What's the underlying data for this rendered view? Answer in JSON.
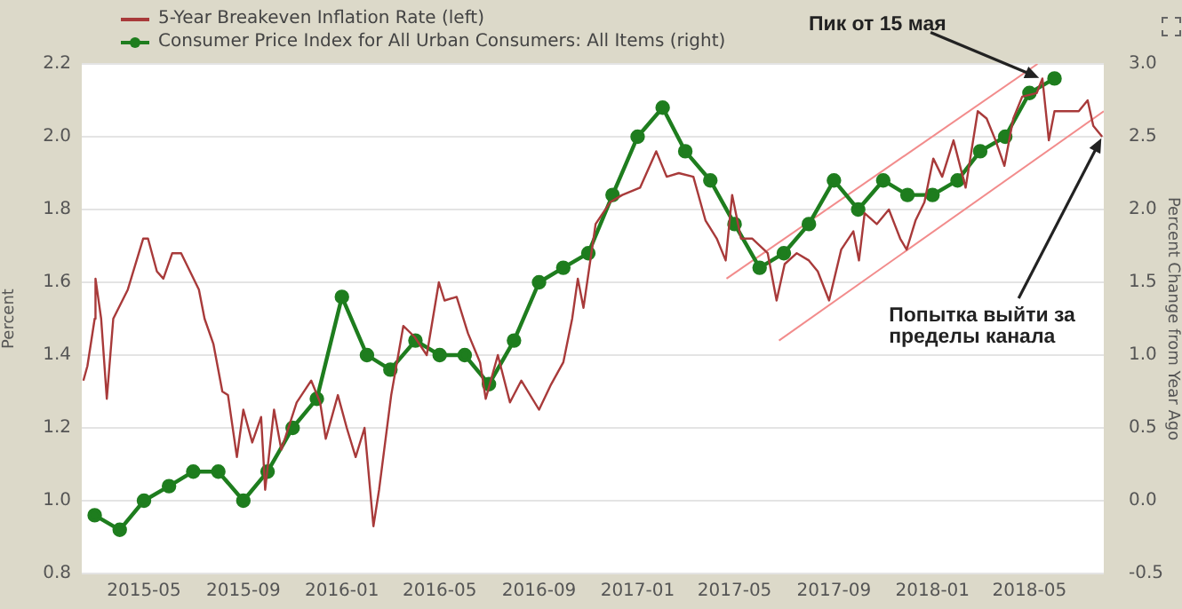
{
  "chart_data": {
    "type": "line",
    "xlabel": null,
    "ylabel": "Percent",
    "y2label": "Percent Change from Year Ago",
    "xlim": [
      "2015-02-13",
      "2018-08-01"
    ],
    "xticks": [
      "2015-05",
      "2015-09",
      "2016-01",
      "2016-05",
      "2016-09",
      "2017-01",
      "2017-05",
      "2017-09",
      "2018-01",
      "2018-05"
    ],
    "ylim": [
      0.8,
      2.2
    ],
    "yticks": [
      0.8,
      {
        "value": 1.0,
        "label": "1.0"
      },
      1.2,
      1.4,
      1.6,
      1.8,
      {
        "value": 2.0,
        "label": "2.0"
      },
      2.2
    ],
    "y2lim": [
      -0.5,
      3.0
    ],
    "y2ticks": [
      -0.5,
      {
        "value": 0.0,
        "label": "0.0"
      },
      0.5,
      {
        "value": 1.0,
        "label": "1.0"
      },
      1.5,
      {
        "value": 2.0,
        "label": "2.0"
      },
      2.5,
      {
        "value": 3.0,
        "label": "3.0"
      }
    ],
    "grid": "y",
    "legend": "top left",
    "series": [
      {
        "name": "5-Year Breakeven Inflation Rate (left)",
        "color": "#a83a3a",
        "marker": "none",
        "x": [
          "2015-02-15",
          "2015-02-20",
          "2015-03-01",
          "2015-03-02",
          "2015-03-09",
          "2015-03-16",
          "2015-03-24",
          "2015-04-11",
          "2015-04-30",
          "2015-05-06",
          "2015-05-17",
          "2015-05-25",
          "2015-06-05",
          "2015-06-16",
          "2015-06-27",
          "2015-07-08",
          "2015-07-15",
          "2015-07-26",
          "2015-08-06",
          "2015-08-13",
          "2015-08-24",
          "2015-09-01",
          "2015-09-12",
          "2015-09-23",
          "2015-09-28",
          "2015-10-09",
          "2015-10-18",
          "2015-11-06",
          "2015-11-24",
          "2015-12-05",
          "2015-12-12",
          "2015-12-27",
          "2016-01-07",
          "2016-01-18",
          "2016-01-29",
          "2016-02-09",
          "2016-02-16",
          "2016-03-02",
          "2016-03-17",
          "2016-03-31",
          "2016-04-15",
          "2016-04-30",
          "2016-05-07",
          "2016-05-22",
          "2016-06-05",
          "2016-06-20",
          "2016-06-27",
          "2016-07-12",
          "2016-07-27",
          "2016-08-10",
          "2016-09-01",
          "2016-09-16",
          "2016-10-01",
          "2016-10-12",
          "2016-10-19",
          "2016-10-26",
          "2016-11-10",
          "2016-11-28",
          "2016-12-13",
          "2017-01-04",
          "2017-01-24",
          "2017-02-06",
          "2017-02-21",
          "2017-03-11",
          "2017-03-26",
          "2017-04-09",
          "2017-04-20",
          "2017-04-28",
          "2017-05-09",
          "2017-05-23",
          "2017-06-11",
          "2017-06-22",
          "2017-07-02",
          "2017-07-17",
          "2017-08-01",
          "2017-08-12",
          "2017-08-26",
          "2017-09-10",
          "2017-09-25",
          "2017-10-02",
          "2017-10-09",
          "2017-10-24",
          "2017-11-08",
          "2017-11-22",
          "2017-11-30",
          "2017-12-11",
          "2017-12-22",
          "2018-01-02",
          "2018-01-13",
          "2018-01-27",
          "2018-02-11",
          "2018-02-26",
          "2018-03-09",
          "2018-03-20",
          "2018-03-31",
          "2018-04-11",
          "2018-04-22",
          "2018-05-10",
          "2018-05-17",
          "2018-05-25",
          "2018-06-01",
          "2018-06-16",
          "2018-07-01",
          "2018-07-12",
          "2018-07-19",
          "2018-07-30"
        ],
        "values": [
          1.33,
          1.37,
          1.5,
          1.61,
          1.5,
          1.28,
          1.5,
          1.58,
          1.72,
          1.72,
          1.63,
          1.61,
          1.68,
          1.68,
          1.63,
          1.58,
          1.5,
          1.43,
          1.3,
          1.29,
          1.12,
          1.25,
          1.16,
          1.23,
          1.03,
          1.25,
          1.14,
          1.27,
          1.33,
          1.27,
          1.17,
          1.29,
          1.2,
          1.12,
          1.2,
          0.93,
          1.03,
          1.29,
          1.48,
          1.45,
          1.4,
          1.6,
          1.55,
          1.56,
          1.46,
          1.38,
          1.28,
          1.4,
          1.27,
          1.33,
          1.25,
          1.32,
          1.38,
          1.5,
          1.61,
          1.53,
          1.76,
          1.82,
          1.84,
          1.86,
          1.96,
          1.89,
          1.9,
          1.89,
          1.77,
          1.72,
          1.66,
          1.84,
          1.72,
          1.72,
          1.68,
          1.55,
          1.65,
          1.68,
          1.66,
          1.63,
          1.55,
          1.69,
          1.74,
          1.66,
          1.79,
          1.76,
          1.8,
          1.72,
          1.69,
          1.77,
          1.82,
          1.94,
          1.89,
          1.99,
          1.86,
          2.07,
          2.05,
          1.99,
          1.92,
          2.05,
          2.11,
          2.12,
          2.16,
          1.99,
          2.07,
          2.07,
          2.07,
          2.1,
          2.03,
          2.0
        ]
      },
      {
        "name": "Consumer Price Index for All Urban Consumers: All Items (right)",
        "color": "#1e7d1e",
        "marker": "circle",
        "axis": "y2",
        "x": [
          "2015-03",
          "2015-04",
          "2015-05",
          "2015-06",
          "2015-07",
          "2015-08",
          "2015-09",
          "2015-10",
          "2015-11",
          "2015-12",
          "2016-01",
          "2016-02",
          "2016-03",
          "2016-04",
          "2016-05",
          "2016-06",
          "2016-07",
          "2016-08",
          "2016-09",
          "2016-10",
          "2016-11",
          "2016-12",
          "2017-01",
          "2017-02",
          "2017-03",
          "2017-04",
          "2017-05",
          "2017-06",
          "2017-07",
          "2017-08",
          "2017-09",
          "2017-10",
          "2017-11",
          "2017-12",
          "2018-01",
          "2018-02",
          "2018-03",
          "2018-04",
          "2018-05",
          "2018-06"
        ],
        "values": [
          -0.1,
          -0.2,
          0.0,
          0.1,
          0.2,
          0.2,
          0.0,
          0.2,
          0.5,
          0.7,
          1.4,
          1.0,
          0.9,
          1.1,
          1.0,
          1.0,
          0.8,
          1.1,
          1.5,
          1.6,
          1.7,
          2.1,
          2.5,
          2.7,
          2.4,
          2.2,
          1.9,
          1.6,
          1.7,
          1.9,
          2.2,
          2.0,
          2.2,
          2.1,
          2.1,
          2.2,
          2.4,
          2.5,
          2.8,
          2.9
        ]
      },
      {
        "type": "line",
        "color": "#f28c8c",
        "marker": "none",
        "x": [
          "2017-04-21",
          "2018-05-11"
        ],
        "values": [
          1.61,
          2.2
        ]
      },
      {
        "type": "line",
        "color": "#f28c8c",
        "marker": "none",
        "x": [
          "2017-06-25",
          "2018-08-01"
        ],
        "values": [
          1.44,
          2.07
        ]
      }
    ],
    "annotations": [
      {
        "text": "Пик от 15 мая",
        "x": "2018-05-15",
        "y": 2.16
      },
      {
        "text": "Попытка выйти за пределы канала",
        "x": "2018-07-30",
        "y": 2.0
      }
    ]
  }
}
